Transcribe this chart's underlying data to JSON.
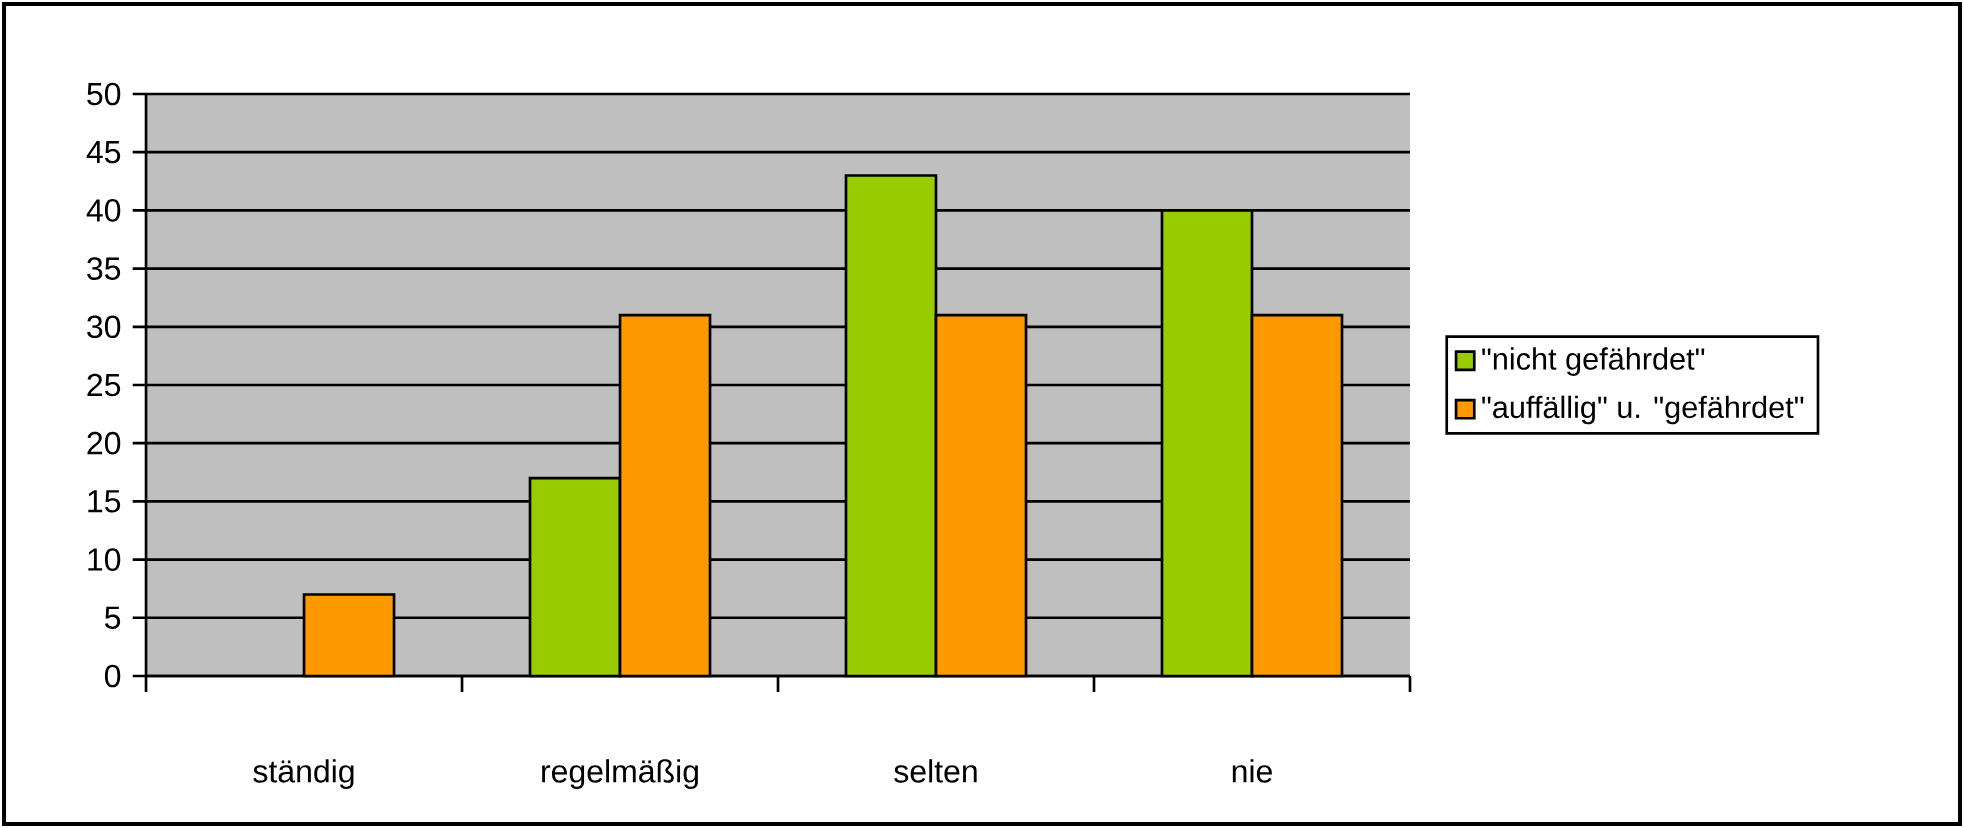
{
  "chart_data": {
    "type": "bar",
    "categories": [
      "ständig",
      "regelmäßig",
      "selten",
      "nie"
    ],
    "series": [
      {
        "name": "\"nicht gefährdet\"",
        "color": "#99cc00",
        "values": [
          null,
          17,
          43,
          40
        ]
      },
      {
        "name": "\"auffällig\" u. \"gefährdet\"",
        "color": "#ff9900",
        "values": [
          7,
          31,
          31,
          31
        ]
      }
    ],
    "ylim": [
      0,
      50
    ],
    "yticks": [
      0,
      5,
      10,
      15,
      20,
      25,
      30,
      35,
      40,
      45,
      50
    ],
    "grid": "y",
    "legend": "right"
  }
}
